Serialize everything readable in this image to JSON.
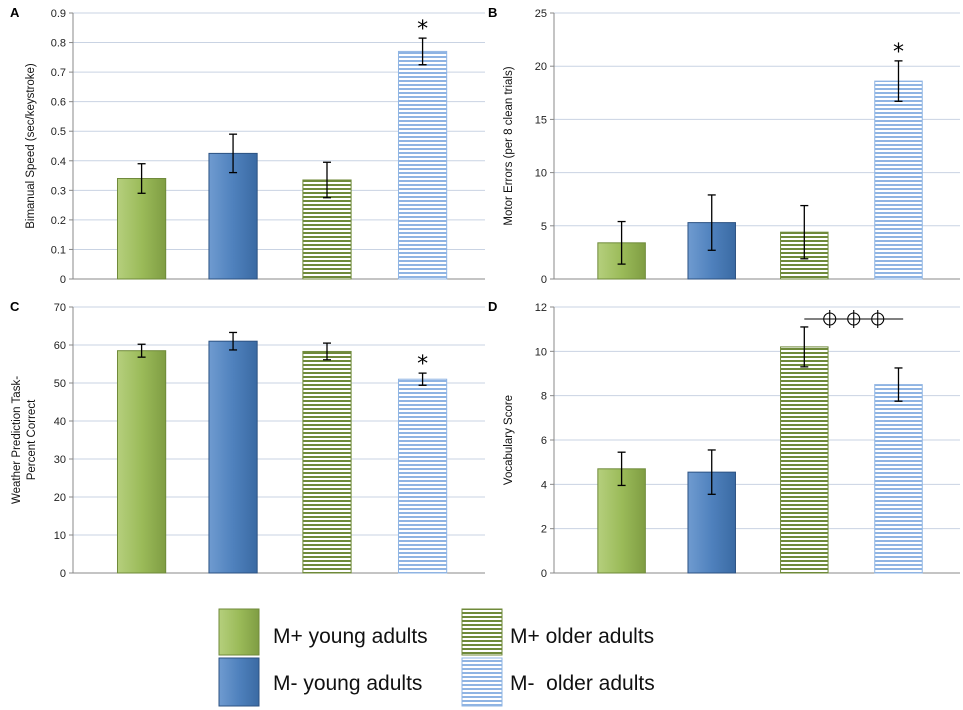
{
  "colors": {
    "green": "#9bbb59",
    "green_dark": "#6f8a3a",
    "blue": "#4f81bd",
    "blue_dark": "#2c5282",
    "light_blue": "#8fb4e3",
    "grid": "#c9d3e3",
    "axis": "#888888"
  },
  "chart_data": [
    {
      "panel": "A",
      "type": "bar",
      "categories": [
        "M+ young adults",
        "M- young adults",
        "M+ older adults",
        "M- older adults"
      ],
      "values": [
        0.34,
        0.425,
        0.335,
        0.77
      ],
      "errors": [
        0.05,
        0.065,
        0.06,
        0.045
      ],
      "ylabel": "Bimanual Speed (sec/keystroke)",
      "ylim": [
        0,
        0.9
      ],
      "ticks": [
        "0",
        "0.1",
        "0.2",
        "0.3",
        "0.4",
        "0.5",
        "0.6",
        "0.7",
        "0.8",
        "0.9"
      ],
      "significance": [
        {
          "bar": 3,
          "symbol": "*"
        }
      ]
    },
    {
      "panel": "B",
      "type": "bar",
      "categories": [
        "M+ young adults",
        "M- young adults",
        "M+ older adults",
        "M- older adults"
      ],
      "values": [
        3.4,
        5.3,
        4.4,
        18.6
      ],
      "errors": [
        2.0,
        2.6,
        2.5,
        1.9
      ],
      "ylabel": "Motor Errors (per 8 clean trials)",
      "ylim": [
        0,
        25
      ],
      "ticks": [
        "0",
        "5",
        "10",
        "15",
        "20",
        "25"
      ],
      "significance": [
        {
          "bar": 3,
          "symbol": "*"
        }
      ]
    },
    {
      "panel": "C",
      "type": "bar",
      "categories": [
        "M+ young adults",
        "M- young adults",
        "M+ older adults",
        "M- older adults"
      ],
      "values": [
        58.5,
        61,
        58.3,
        51
      ],
      "errors": [
        1.7,
        2.3,
        2.2,
        1.6
      ],
      "ylabel_lines": [
        "Weather Prediction Task-",
        "Percent Correct"
      ],
      "ylim": [
        0,
        70
      ],
      "ticks": [
        "0",
        "10",
        "20",
        "30",
        "40",
        "50",
        "60",
        "70"
      ],
      "significance": [
        {
          "bar": 3,
          "symbol": "*"
        }
      ]
    },
    {
      "panel": "D",
      "type": "bar",
      "categories": [
        "M+ young adults",
        "M- young adults",
        "M+ older adults",
        "M- older adults"
      ],
      "values": [
        4.7,
        4.55,
        10.2,
        8.5
      ],
      "errors": [
        0.75,
        1.0,
        0.9,
        0.75
      ],
      "ylabel": "Vocabulary Score",
      "ylim": [
        0,
        12
      ],
      "ticks": [
        "0",
        "2",
        "4",
        "6",
        "8",
        "10",
        "12"
      ],
      "bracket": {
        "from_bar": 2,
        "to_bar": 3,
        "symbol_count": 3
      }
    }
  ],
  "legend": [
    {
      "label": "M+ young adults",
      "style": "solid-green"
    },
    {
      "label": "M+ older adults",
      "style": "striped-green"
    },
    {
      "label": "M- young adults",
      "style": "solid-blue"
    },
    {
      "label": "M-  older adults",
      "style": "striped-blue"
    }
  ]
}
